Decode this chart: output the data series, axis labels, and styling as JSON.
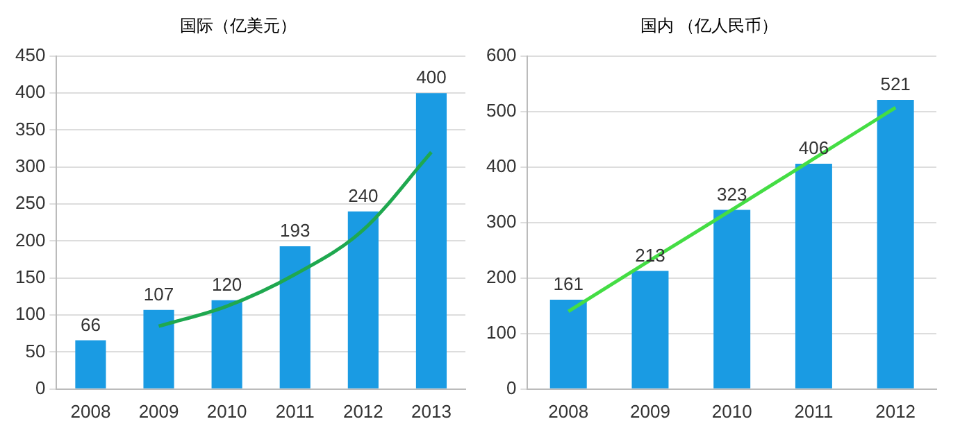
{
  "chart_data": [
    {
      "type": "bar",
      "title": "国际（亿美元）",
      "categories": [
        "2008",
        "2009",
        "2010",
        "2011",
        "2012",
        "2013"
      ],
      "series": [
        {
          "color": "#1a9be3",
          "values": [
            66,
            107,
            120,
            193,
            240,
            400
          ],
          "value_labels": [
            "66",
            "107",
            "120",
            "193",
            "240",
            "400"
          ]
        },
        {
          "type": "line",
          "color": "#1fa84f",
          "values": [
            null,
            85,
            112,
            155,
            215,
            320
          ]
        }
      ],
      "ylim": [
        0,
        450
      ],
      "yticks": [
        0,
        50,
        100,
        150,
        200,
        250,
        300,
        350,
        400,
        450
      ],
      "grid": "y",
      "marker": "none"
    },
    {
      "type": "bar",
      "title": "国内 （亿人民币）",
      "categories": [
        "2008",
        "2009",
        "2010",
        "2011",
        "2012"
      ],
      "series": [
        {
          "color": "#1a9be3",
          "values": [
            161,
            213,
            323,
            406,
            521
          ],
          "value_labels": [
            "161",
            "213",
            "323",
            "406",
            "521"
          ]
        },
        {
          "type": "line",
          "color": "#44dd44",
          "values": [
            140,
            232,
            323,
            415,
            507
          ]
        }
      ],
      "ylim": [
        0,
        600
      ],
      "yticks": [
        0,
        100,
        200,
        300,
        400,
        500,
        600
      ],
      "grid": "y",
      "marker": "none"
    }
  ]
}
